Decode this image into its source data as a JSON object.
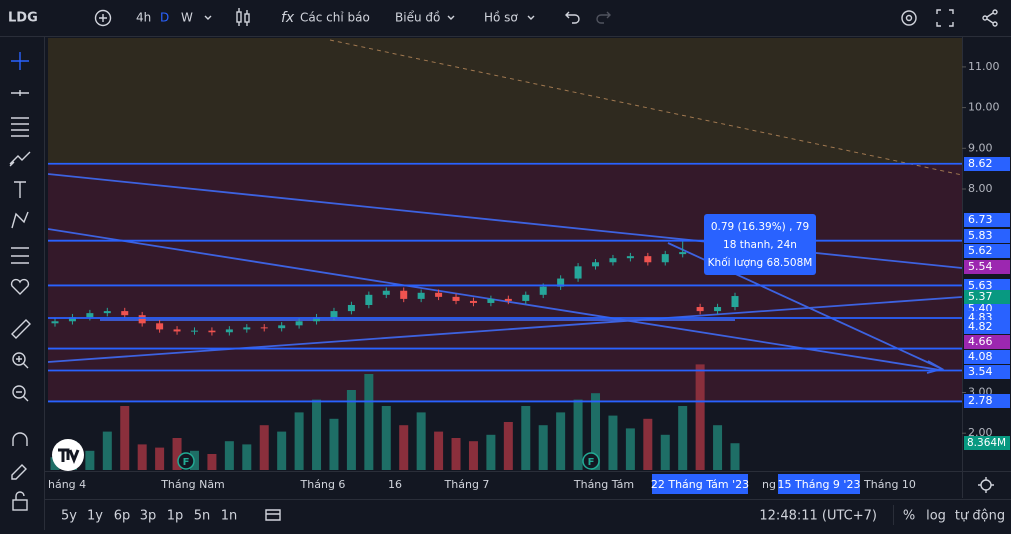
{
  "toolbar": {
    "symbol": "LDG",
    "intervals": [
      "4h",
      "D",
      "W"
    ],
    "indicators": "Các chỉ báo",
    "chart_menu": "Biểu đồ",
    "profile_menu": "Hồ sơ"
  },
  "chart": {
    "price_ticks": [
      {
        "value": 11,
        "label": "11.00"
      },
      {
        "value": 10,
        "label": "10.00"
      },
      {
        "value": 9,
        "label": "9.00"
      },
      {
        "value": 8,
        "label": "8.00"
      },
      {
        "value": 3,
        "label": "3.00"
      },
      {
        "value": 2,
        "label": "2.00"
      }
    ],
    "price_labels": [
      {
        "value": 8.62,
        "label": "8.62",
        "color": "#2962ff",
        "horizontal_line": true
      },
      {
        "value": 6.73,
        "label": "6.73",
        "color": "#2962ff",
        "horizontal_line": true
      },
      {
        "value": 5.83,
        "label": "5.83",
        "color": "#2962ff",
        "horizontal_line": false
      },
      {
        "value": 5.62,
        "label": "5.62",
        "color": "#2962ff",
        "horizontal_line": false
      },
      {
        "value": 5.54,
        "label": "5.54",
        "color": "#9c27b0",
        "horizontal_line": false
      },
      {
        "value": 5.63,
        "label": "5.63",
        "color": "#2962ff",
        "horizontal_line": true
      },
      {
        "value": 5.4,
        "label": "5.40",
        "color": "#2962ff",
        "horizontal_line": false
      },
      {
        "value": 5.37,
        "label": "5.37",
        "color": "#089981",
        "horizontal_line": false
      },
      {
        "value": 4.83,
        "label": "4.83",
        "color": "#2962ff",
        "horizontal_line": true
      },
      {
        "value": 4.82,
        "label": "4.82",
        "color": "#2962ff",
        "horizontal_line": false
      },
      {
        "value": 4.66,
        "label": "4.66",
        "color": "#9c27b0",
        "horizontal_line": false
      },
      {
        "value": 4.08,
        "label": "4.08",
        "color": "#2962ff",
        "horizontal_line": true
      },
      {
        "value": 3.54,
        "label": "3.54",
        "color": "#2962ff",
        "horizontal_line": true
      },
      {
        "value": 2.78,
        "label": "2.78",
        "color": "#2962ff",
        "horizontal_line": true
      }
    ],
    "candles": [
      [
        4.7,
        4.83,
        4.62,
        4.75
      ],
      [
        4.75,
        4.93,
        4.67,
        4.85
      ],
      [
        4.85,
        5.03,
        4.77,
        4.95
      ],
      [
        4.95,
        5.08,
        4.87,
        5.0
      ],
      [
        5.0,
        5.08,
        4.82,
        4.9
      ],
      [
        4.9,
        4.98,
        4.62,
        4.7
      ],
      [
        4.7,
        4.78,
        4.47,
        4.55
      ],
      [
        4.55,
        4.63,
        4.42,
        4.5
      ],
      [
        4.5,
        4.6,
        4.42,
        4.52
      ],
      [
        4.52,
        4.6,
        4.4,
        4.48
      ],
      [
        4.48,
        4.63,
        4.4,
        4.55
      ],
      [
        4.55,
        4.68,
        4.47,
        4.6
      ],
      [
        4.6,
        4.68,
        4.5,
        4.58
      ],
      [
        4.58,
        4.73,
        4.5,
        4.65
      ],
      [
        4.65,
        4.83,
        4.57,
        4.75
      ],
      [
        4.75,
        4.93,
        4.67,
        4.85
      ],
      [
        4.85,
        5.08,
        4.77,
        5.0
      ],
      [
        5.0,
        5.23,
        4.92,
        5.15
      ],
      [
        5.15,
        5.48,
        5.07,
        5.4
      ],
      [
        5.4,
        5.58,
        5.32,
        5.5
      ],
      [
        5.5,
        5.58,
        5.22,
        5.3
      ],
      [
        5.3,
        5.53,
        5.22,
        5.45
      ],
      [
        5.45,
        5.53,
        5.27,
        5.35
      ],
      [
        5.35,
        5.43,
        5.17,
        5.25
      ],
      [
        5.25,
        5.33,
        5.12,
        5.2
      ],
      [
        5.2,
        5.38,
        5.12,
        5.3
      ],
      [
        5.3,
        5.38,
        5.17,
        5.25
      ],
      [
        5.25,
        5.48,
        5.17,
        5.4
      ],
      [
        5.4,
        5.68,
        5.32,
        5.6
      ],
      [
        5.6,
        5.88,
        5.52,
        5.8
      ],
      [
        5.8,
        6.18,
        5.72,
        6.1
      ],
      [
        6.1,
        6.28,
        6.02,
        6.2
      ],
      [
        6.2,
        6.38,
        6.12,
        6.3
      ],
      [
        6.3,
        6.43,
        6.22,
        6.35
      ],
      [
        6.35,
        6.43,
        6.12,
        6.2
      ],
      [
        6.2,
        6.48,
        6.12,
        6.4
      ],
      [
        6.4,
        6.73,
        6.32,
        6.45
      ],
      [
        5.1,
        5.18,
        4.92,
        5.0
      ],
      [
        5.0,
        5.18,
        4.92,
        5.1
      ],
      [
        5.1,
        5.45,
        5.02,
        5.37
      ]
    ],
    "volumes": [
      4,
      9,
      6,
      12,
      20,
      8,
      7,
      10,
      6,
      5,
      9,
      8,
      14,
      12,
      18,
      22,
      16,
      25,
      30,
      20,
      14,
      18,
      12,
      10,
      9,
      11,
      15,
      20,
      14,
      18,
      22,
      24,
      17,
      13,
      16,
      11,
      20,
      33,
      14,
      8.364
    ],
    "volume_label": {
      "value": 8.364,
      "label": "8.364M"
    },
    "event_markers": [
      "F",
      "F"
    ],
    "tooltip": [
      "0.79 (16.39%) , 79",
      "18 thanh, 24n",
      "Khối lượng 68.508M"
    ],
    "time_labels": [
      "háng 4",
      "Tháng Năm",
      "Tháng 6",
      "16",
      "Tháng 7",
      "Tháng Tám",
      "ng 9",
      "Tháng 10"
    ],
    "time_highlights": [
      "22 Tháng Tám '23",
      "15 Tháng 9 '23"
    ]
  },
  "bottom_bar": {
    "ranges": [
      "5y",
      "1y",
      "6p",
      "3p",
      "1p",
      "5n",
      "1n"
    ],
    "clock": "12:48:11 (UTC+7)",
    "options": [
      "%",
      "log",
      "tự động"
    ]
  }
}
